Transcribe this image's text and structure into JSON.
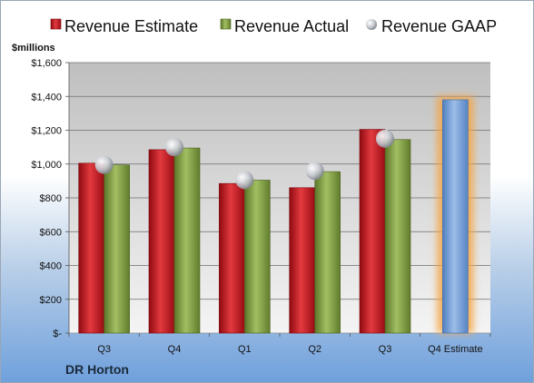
{
  "company": "DR Horton",
  "colors": {
    "estimate": "#c8141c",
    "actual": "#7c9a3a",
    "gaap": "#b8bcc4",
    "forecast": "#6f9bd6",
    "forecast_glow": "#f5a544"
  },
  "chart_data": {
    "type": "bar",
    "unit_label": "$millions",
    "categories": [
      "Q3",
      "Q4",
      "Q1",
      "Q2",
      "Q3",
      "Q4 Estimate"
    ],
    "ylim": [
      0,
      1600
    ],
    "yticks": [
      0,
      200,
      400,
      600,
      800,
      1000,
      1200,
      1400,
      1600
    ],
    "ytick_labels": [
      "$-",
      "$200",
      "$400",
      "$600",
      "$800",
      "$1,000",
      "$1,200",
      "$1,400",
      "$1,600"
    ],
    "grid": true,
    "legend_position": "top",
    "series": [
      {
        "name": "Revenue Estimate",
        "values": [
          1005,
          1085,
          885,
          860,
          1205,
          null
        ]
      },
      {
        "name": "Revenue Actual",
        "values": [
          995,
          1095,
          905,
          955,
          1145,
          null
        ]
      },
      {
        "name": "Revenue GAAP",
        "values": [
          995,
          1100,
          905,
          960,
          1150,
          null
        ]
      }
    ],
    "forecast": {
      "category": "Q4 Estimate",
      "value": 1380
    }
  }
}
